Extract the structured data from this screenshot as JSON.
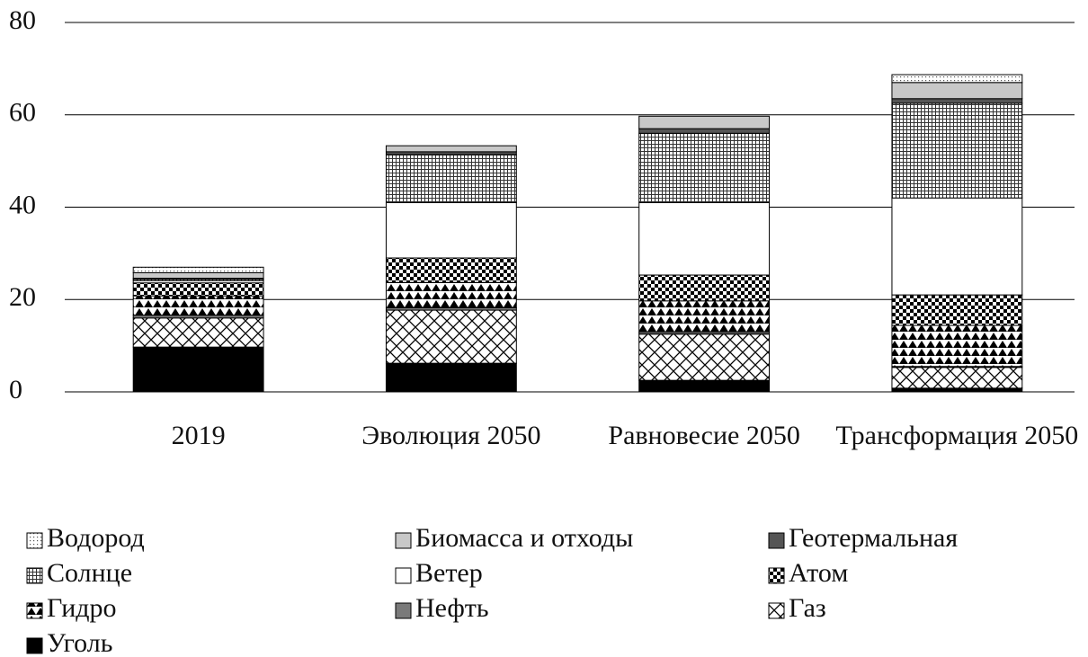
{
  "chart_data": {
    "type": "stacked-bar",
    "categories": [
      "2019",
      "Эволюция 2050",
      "Равновесие 2050",
      "Трансформация 2050"
    ],
    "series": [
      {
        "name": "Уголь",
        "color": "#000000",
        "pattern": "solid",
        "values": [
          9.7,
          6.2,
          2.5,
          0.8
        ]
      },
      {
        "name": "Газ",
        "color": "#ffffff",
        "pattern": "crosshatch",
        "values": [
          6.3,
          11.5,
          10,
          4.5
        ]
      },
      {
        "name": "Нефть",
        "color": "#7a7a7a",
        "pattern": "solid",
        "values": [
          0.6,
          0.5,
          0.4,
          0.2
        ]
      },
      {
        "name": "Гидро",
        "color": "#ffffff",
        "pattern": "triangles",
        "values": [
          4.2,
          5.5,
          6.8,
          8.9
        ]
      },
      {
        "name": "Атом",
        "color": "#ffffff",
        "pattern": "checks",
        "values": [
          2.8,
          5.3,
          5.6,
          6.6
        ]
      },
      {
        "name": "Ветер",
        "color": "#ffffff",
        "pattern": "solid",
        "values": [
          0.5,
          12,
          15.7,
          21
        ]
      },
      {
        "name": "Солнце",
        "color": "#ffffff",
        "pattern": "grid",
        "values": [
          0.3,
          10.4,
          15,
          20.5
        ]
      },
      {
        "name": "Геотермальная",
        "color": "#555555",
        "pattern": "solid",
        "values": [
          0.2,
          0.6,
          1,
          1
        ]
      },
      {
        "name": "Биомасса и отходы",
        "color": "#c8c8c8",
        "pattern": "solid",
        "values": [
          1.2,
          1.3,
          2.7,
          3.5
        ]
      },
      {
        "name": "Водород",
        "color": "#ffffff",
        "pattern": "dots",
        "values": [
          1.2,
          0,
          0,
          1.7
        ]
      }
    ],
    "legend_order": [
      9,
      8,
      7,
      6,
      5,
      4,
      3,
      2,
      1,
      0
    ],
    "ylim": [
      0,
      80
    ],
    "yticks": [
      0,
      20,
      40,
      60,
      80
    ],
    "grid": true
  }
}
